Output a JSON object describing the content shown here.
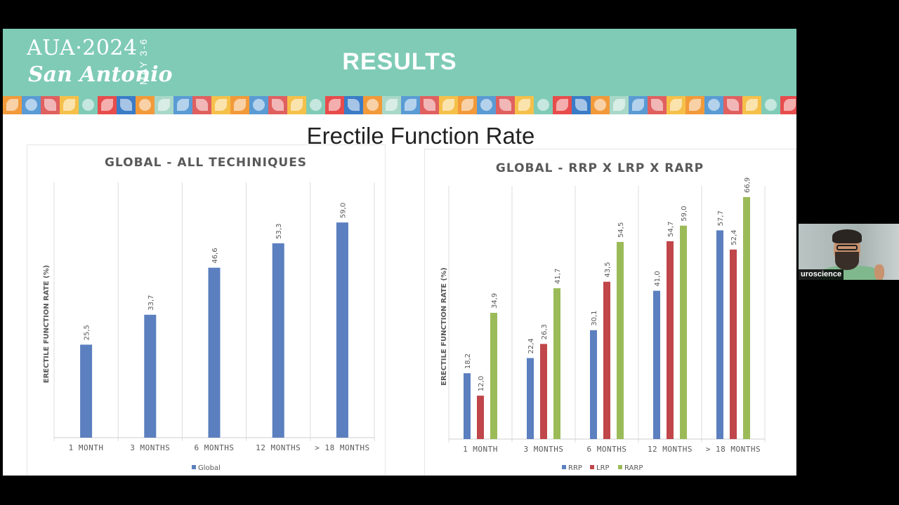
{
  "banner": {
    "logo_line1": "AUA·2024",
    "logo_line2": "San Antonio",
    "logo_dates": "MAY 3-6",
    "title": "RESULTS",
    "color": "#7fcbb6",
    "pattern_colors": [
      "#f29a3a",
      "#5a9bd4",
      "#e06060",
      "#f5c04a",
      "#7fcbb6",
      "#e84c4c",
      "#3a7cc7",
      "#f29a3a",
      "#a9d8c8",
      "#5a9bd4",
      "#e06060",
      "#f5c04a"
    ]
  },
  "slide": {
    "subtitle": "Erectile Function Rate"
  },
  "chart_data": [
    {
      "type": "bar",
      "title": "GLOBAL  - ALL TECHINIQUES",
      "ylabel": "ERECTILE FUNCTION RATE (%)",
      "xlabel": "",
      "categories": [
        "1 MONTH",
        "3 MONTHS",
        "6 MONTHS",
        "12 MONTHS",
        "> 18 MONTHS"
      ],
      "series": [
        {
          "name": "Global",
          "color": "#5b7fbf",
          "values": [
            25.5,
            33.7,
            46.6,
            53.3,
            59.0
          ],
          "labels": [
            "25,5",
            "33,7",
            "46,6",
            "53,3",
            "59,0"
          ]
        }
      ],
      "ylim": [
        0,
        70
      ],
      "legend": "bottom",
      "grid": "vertical category separators"
    },
    {
      "type": "bar",
      "title": "GLOBAL  - RRP X LRP X RARP",
      "ylabel": "ERECTILE FUNCTION RATE (%)",
      "xlabel": "",
      "categories": [
        "1 MONTH",
        "3 MONTHS",
        "6 MONTHS",
        "12 MONTHS",
        "> 18 MONTHS"
      ],
      "series": [
        {
          "name": "RRP",
          "color": "#5b7fbf",
          "values": [
            18.2,
            22.4,
            30.1,
            41.0,
            57.7
          ],
          "labels": [
            "18,2",
            "22,4",
            "30,1",
            "41,0",
            "57,7"
          ]
        },
        {
          "name": "LRP",
          "color": "#c0464a",
          "values": [
            12.0,
            26.3,
            43.5,
            54.7,
            52.4
          ],
          "labels": [
            "12,0",
            "26,3",
            "43,5",
            "54,7",
            "52,4"
          ]
        },
        {
          "name": "RARP",
          "color": "#9bbb59",
          "values": [
            34.9,
            41.7,
            54.5,
            59.0,
            66.9
          ],
          "labels": [
            "34,9",
            "41,7",
            "54,5",
            "59,0",
            "66,9"
          ]
        }
      ],
      "ylim": [
        0,
        70
      ],
      "legend": "bottom",
      "grid": "vertical category separators"
    }
  ],
  "webcam": {
    "label": "uroscience"
  }
}
